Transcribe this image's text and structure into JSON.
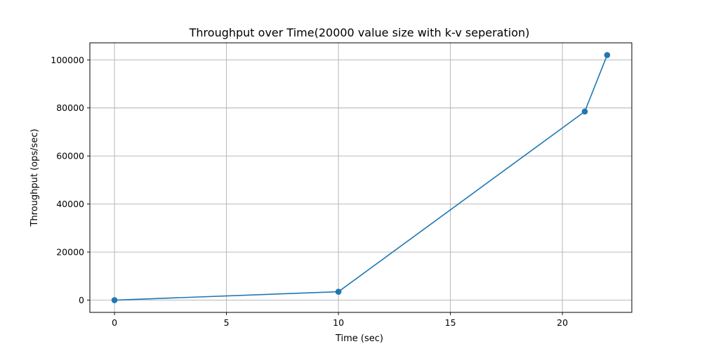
{
  "chart_data": {
    "type": "line",
    "title": "Throughput over Time(20000 value size with k-v seperation)",
    "xlabel": "Time (sec)",
    "ylabel": "Throughput (ops/sec)",
    "xlim": [
      -1.1,
      23.1
    ],
    "ylim": [
      -5100,
      107100
    ],
    "xticks": [
      0,
      5,
      10,
      15,
      20
    ],
    "yticks": [
      0,
      20000,
      40000,
      60000,
      80000,
      100000
    ],
    "grid": true,
    "marker": "circle",
    "color": "#1f77b4",
    "series": [
      {
        "x": [
          0,
          10,
          21,
          22
        ],
        "y": [
          0,
          3500,
          78500,
          102000
        ]
      }
    ]
  }
}
